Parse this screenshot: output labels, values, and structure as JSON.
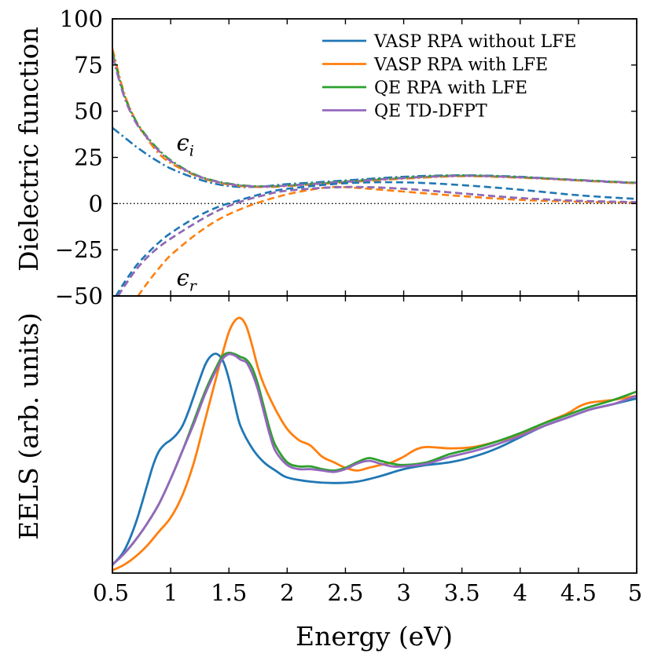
{
  "chart_data": [
    {
      "panel": "top",
      "type": "line",
      "xlabel": "",
      "ylabel": "Dielectric function",
      "xlim": [
        0.5,
        5
      ],
      "ylim": [
        -50,
        100
      ],
      "yticks": [
        100,
        75,
        50,
        25,
        0,
        -25,
        -50
      ],
      "ytick_labels": [
        "100",
        "75",
        "50",
        "25",
        "0",
        "−25",
        "−50"
      ],
      "zero_line": "dotted",
      "annotations": [
        {
          "base": "ϵ",
          "sub": "i",
          "x": 1.05,
          "y": 33
        },
        {
          "base": "ϵ",
          "sub": "r",
          "x": 1.05,
          "y": -40
        }
      ],
      "legend": {
        "location": "top-right",
        "entries": [
          {
            "label": "VASP RPA without LFE",
            "color": "#1f77b4"
          },
          {
            "label": "VASP RPA with LFE",
            "color": "#ff7f0e"
          },
          {
            "label": "QE RPA with LFE",
            "color": "#2ca02c"
          },
          {
            "label": "QE TD-DFPT",
            "color": "#9467bd"
          }
        ]
      },
      "series": [
        {
          "name": "VASP RPA without LFE",
          "component": "imaginary",
          "style": "dashdot",
          "color": "#1f77b4",
          "x": [
            0.5,
            0.6,
            0.7,
            0.8,
            0.9,
            1.0,
            1.2,
            1.4,
            1.6,
            1.8,
            2.0,
            2.5,
            3.0,
            3.5,
            4.0,
            4.5,
            5.0
          ],
          "y": [
            41,
            36,
            31,
            26.5,
            22.5,
            19,
            14,
            10.5,
            9,
            9.3,
            10.5,
            12.5,
            14.5,
            15.3,
            14.5,
            12.5,
            11
          ]
        },
        {
          "name": "VASP RPA with LFE",
          "component": "imaginary",
          "style": "dashdot",
          "color": "#ff7f0e",
          "x": [
            0.5,
            0.6,
            0.7,
            0.8,
            0.9,
            1.0,
            1.2,
            1.4,
            1.6,
            1.8,
            2.0,
            2.5,
            3.0,
            3.5,
            4.0,
            4.5,
            5.0
          ],
          "y": [
            84,
            60,
            45,
            35,
            27,
            22,
            15.5,
            11.5,
            9.5,
            9,
            9.5,
            11.5,
            13.5,
            14.8,
            14,
            12.5,
            11
          ]
        },
        {
          "name": "QE RPA with LFE",
          "component": "imaginary",
          "style": "dashdot",
          "color": "#2ca02c",
          "x": [
            0.5,
            0.6,
            0.7,
            0.8,
            0.9,
            1.0,
            1.2,
            1.4,
            1.6,
            1.8,
            2.0,
            2.5,
            3.0,
            3.5,
            4.0,
            4.5,
            5.0
          ],
          "y": [
            82,
            59,
            45,
            36,
            29,
            23.5,
            16,
            12,
            10,
            9.3,
            9.8,
            12,
            14,
            15.2,
            14.3,
            12.8,
            11.3
          ]
        },
        {
          "name": "QE TD-DFPT",
          "component": "imaginary",
          "style": "dashdot",
          "color": "#9467bd",
          "x": [
            0.5,
            0.6,
            0.7,
            0.8,
            0.9,
            1.0,
            1.2,
            1.4,
            1.6,
            1.8,
            2.0,
            2.5,
            3.0,
            3.5,
            4.0,
            4.5,
            5.0
          ],
          "y": [
            80,
            58,
            44,
            35.5,
            28.5,
            23,
            15.8,
            11.8,
            9.8,
            9.2,
            9.7,
            11.8,
            13.8,
            15,
            14.2,
            12.7,
            11.2
          ]
        },
        {
          "name": "VASP RPA without LFE",
          "component": "real",
          "style": "dashed",
          "color": "#1f77b4",
          "x": [
            0.53,
            0.6,
            0.7,
            0.8,
            0.9,
            1.0,
            1.2,
            1.4,
            1.6,
            1.8,
            2.0,
            2.5,
            3.0,
            3.5,
            4.0,
            4.5,
            5.0
          ],
          "y": [
            -50,
            -43,
            -34,
            -27,
            -21,
            -16,
            -8,
            -2,
            2,
            5.5,
            8,
            11,
            11.5,
            10,
            7.5,
            4.5,
            2.5
          ]
        },
        {
          "name": "VASP RPA with LFE",
          "component": "real",
          "style": "dashed",
          "color": "#ff7f0e",
          "x": [
            0.72,
            0.8,
            0.9,
            1.0,
            1.2,
            1.4,
            1.6,
            1.8,
            2.0,
            2.2,
            2.4,
            2.6,
            3.0,
            3.5,
            4.0,
            4.5,
            5.0
          ],
          "y": [
            -50,
            -43,
            -35,
            -28,
            -17.5,
            -9,
            -3,
            1.5,
            5,
            7.5,
            9,
            8.5,
            6.5,
            4,
            2,
            1,
            0.5
          ]
        },
        {
          "name": "QE RPA with LFE",
          "component": "real",
          "style": "dashed",
          "color": "#2ca02c",
          "x": [
            0.55,
            0.6,
            0.7,
            0.8,
            0.9,
            1.0,
            1.2,
            1.4,
            1.6,
            1.8,
            2.0,
            2.5,
            3.0,
            3.5,
            4.0,
            4.5,
            5.0
          ],
          "y": [
            -50,
            -45,
            -36,
            -29,
            -23.5,
            -19,
            -11,
            -4,
            1,
            4.5,
            7,
            9,
            8,
            5.5,
            3,
            1.5,
            0.8
          ]
        },
        {
          "name": "QE TD-DFPT",
          "component": "real",
          "style": "dashed",
          "color": "#9467bd",
          "x": [
            0.55,
            0.6,
            0.7,
            0.8,
            0.9,
            1.0,
            1.2,
            1.4,
            1.6,
            1.8,
            2.0,
            2.5,
            3.0,
            3.5,
            4.0,
            4.5,
            5.0
          ],
          "y": [
            -50,
            -45,
            -36,
            -29,
            -23.5,
            -19,
            -11,
            -4,
            1,
            4.5,
            7,
            9,
            8,
            5.5,
            3,
            1.5,
            0.8
          ]
        }
      ]
    },
    {
      "panel": "bottom",
      "type": "line",
      "xlabel": "Energy (eV)",
      "ylabel": "EELS (arb. units)",
      "xlim": [
        0.5,
        5
      ],
      "ylim": [
        0,
        1
      ],
      "xticks": [
        0.5,
        1,
        1.5,
        2,
        2.5,
        3,
        3.5,
        4,
        4.5,
        5
      ],
      "xtick_labels": [
        "0.5",
        "1",
        "1.5",
        "2",
        "2.5",
        "3",
        "3.5",
        "4",
        "4.5",
        "5"
      ],
      "yticks_visible": false,
      "series": [
        {
          "name": "VASP RPA without LFE",
          "color": "#1f77b4",
          "x": [
            0.5,
            0.6,
            0.7,
            0.8,
            0.85,
            0.9,
            0.95,
            1.0,
            1.05,
            1.1,
            1.15,
            1.2,
            1.25,
            1.3,
            1.35,
            1.4,
            1.45,
            1.5,
            1.55,
            1.6,
            1.7,
            1.8,
            1.9,
            2.0,
            2.2,
            2.4,
            2.6,
            2.8,
            3.0,
            3.2,
            3.4,
            3.6,
            3.8,
            4.0,
            4.2,
            4.4,
            4.6,
            4.8,
            5.0
          ],
          "y": [
            0.03,
            0.08,
            0.18,
            0.32,
            0.39,
            0.44,
            0.465,
            0.48,
            0.5,
            0.53,
            0.58,
            0.64,
            0.7,
            0.755,
            0.785,
            0.79,
            0.765,
            0.7,
            0.61,
            0.53,
            0.45,
            0.4,
            0.37,
            0.345,
            0.33,
            0.325,
            0.33,
            0.35,
            0.375,
            0.39,
            0.4,
            0.42,
            0.45,
            0.49,
            0.53,
            0.56,
            0.59,
            0.61,
            0.63
          ]
        },
        {
          "name": "VASP RPA with LFE",
          "color": "#ff7f0e",
          "x": [
            0.5,
            0.6,
            0.7,
            0.8,
            0.9,
            1.0,
            1.1,
            1.2,
            1.3,
            1.4,
            1.45,
            1.5,
            1.55,
            1.6,
            1.65,
            1.7,
            1.75,
            1.8,
            1.9,
            2.0,
            2.1,
            2.2,
            2.3,
            2.4,
            2.5,
            2.6,
            2.7,
            2.8,
            2.9,
            3.0,
            3.1,
            3.2,
            3.4,
            3.6,
            3.8,
            4.0,
            4.2,
            4.4,
            4.5,
            4.6,
            4.8,
            5.0
          ],
          "y": [
            0.01,
            0.03,
            0.06,
            0.1,
            0.15,
            0.2,
            0.28,
            0.4,
            0.56,
            0.72,
            0.8,
            0.87,
            0.91,
            0.92,
            0.89,
            0.82,
            0.74,
            0.68,
            0.59,
            0.52,
            0.48,
            0.46,
            0.42,
            0.4,
            0.38,
            0.37,
            0.38,
            0.39,
            0.4,
            0.42,
            0.445,
            0.455,
            0.45,
            0.455,
            0.475,
            0.5,
            0.54,
            0.575,
            0.6,
            0.615,
            0.625,
            0.64
          ]
        },
        {
          "name": "QE RPA with LFE",
          "color": "#2ca02c",
          "x": [
            0.5,
            0.6,
            0.7,
            0.8,
            0.9,
            1.0,
            1.1,
            1.2,
            1.3,
            1.4,
            1.45,
            1.5,
            1.55,
            1.6,
            1.65,
            1.7,
            1.75,
            1.8,
            1.85,
            1.9,
            2.0,
            2.1,
            2.2,
            2.3,
            2.4,
            2.5,
            2.6,
            2.7,
            2.8,
            2.9,
            3.0,
            3.2,
            3.4,
            3.6,
            3.8,
            4.0,
            4.2,
            4.4,
            4.6,
            4.8,
            5.0
          ],
          "y": [
            0.03,
            0.07,
            0.12,
            0.18,
            0.25,
            0.34,
            0.44,
            0.55,
            0.66,
            0.75,
            0.785,
            0.795,
            0.79,
            0.78,
            0.77,
            0.74,
            0.68,
            0.6,
            0.52,
            0.46,
            0.4,
            0.385,
            0.385,
            0.375,
            0.37,
            0.38,
            0.4,
            0.415,
            0.405,
            0.395,
            0.39,
            0.4,
            0.43,
            0.45,
            0.475,
            0.505,
            0.54,
            0.57,
            0.6,
            0.625,
            0.655
          ]
        },
        {
          "name": "QE TD-DFPT",
          "color": "#9467bd",
          "x": [
            0.5,
            0.6,
            0.7,
            0.8,
            0.9,
            1.0,
            1.1,
            1.2,
            1.3,
            1.4,
            1.45,
            1.5,
            1.55,
            1.6,
            1.65,
            1.7,
            1.75,
            1.8,
            1.85,
            1.9,
            2.0,
            2.1,
            2.2,
            2.3,
            2.4,
            2.5,
            2.6,
            2.7,
            2.8,
            2.9,
            3.0,
            3.2,
            3.4,
            3.6,
            3.8,
            4.0,
            4.2,
            4.4,
            4.6,
            4.8,
            5.0
          ],
          "y": [
            0.03,
            0.07,
            0.12,
            0.18,
            0.25,
            0.34,
            0.44,
            0.54,
            0.65,
            0.74,
            0.775,
            0.79,
            0.785,
            0.77,
            0.76,
            0.72,
            0.66,
            0.58,
            0.5,
            0.44,
            0.39,
            0.375,
            0.375,
            0.37,
            0.365,
            0.375,
            0.395,
            0.405,
            0.395,
            0.385,
            0.385,
            0.395,
            0.42,
            0.44,
            0.465,
            0.495,
            0.53,
            0.56,
            0.59,
            0.61,
            0.64
          ]
        }
      ]
    }
  ]
}
